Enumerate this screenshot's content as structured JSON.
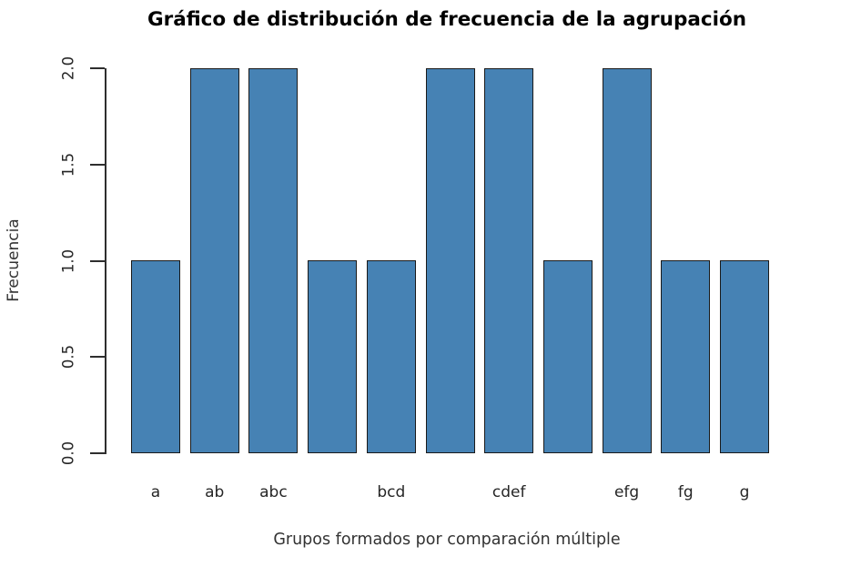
{
  "chart_data": {
    "type": "bar",
    "title": "Gráfico de distribución de frecuencia de la agrupación",
    "xlabel": "Grupos formados por comparación múltiple",
    "ylabel": "Frecuencia",
    "categories": [
      "a",
      "ab",
      "abc",
      "",
      "bcd",
      "",
      "cdef",
      "",
      "efg",
      "fg",
      "g"
    ],
    "values": [
      1,
      2,
      2,
      1,
      1,
      2,
      2,
      1,
      2,
      1,
      1
    ],
    "ytick_labels": [
      "0.0",
      "0.5",
      "1.0",
      "1.5",
      "2.0"
    ],
    "ytick_values": [
      0.0,
      0.5,
      1.0,
      1.5,
      2.0
    ],
    "ylim": [
      0,
      2
    ],
    "grid": false,
    "legend_position": "none",
    "colors": {
      "bar_fill": "#4682B4",
      "bar_border": "#1A1A1A",
      "axis": "#2E2E2E",
      "tick_text": "#262626",
      "axis_label_text": "#333333",
      "title_text": "#000000",
      "background": "#FFFFFF"
    }
  }
}
